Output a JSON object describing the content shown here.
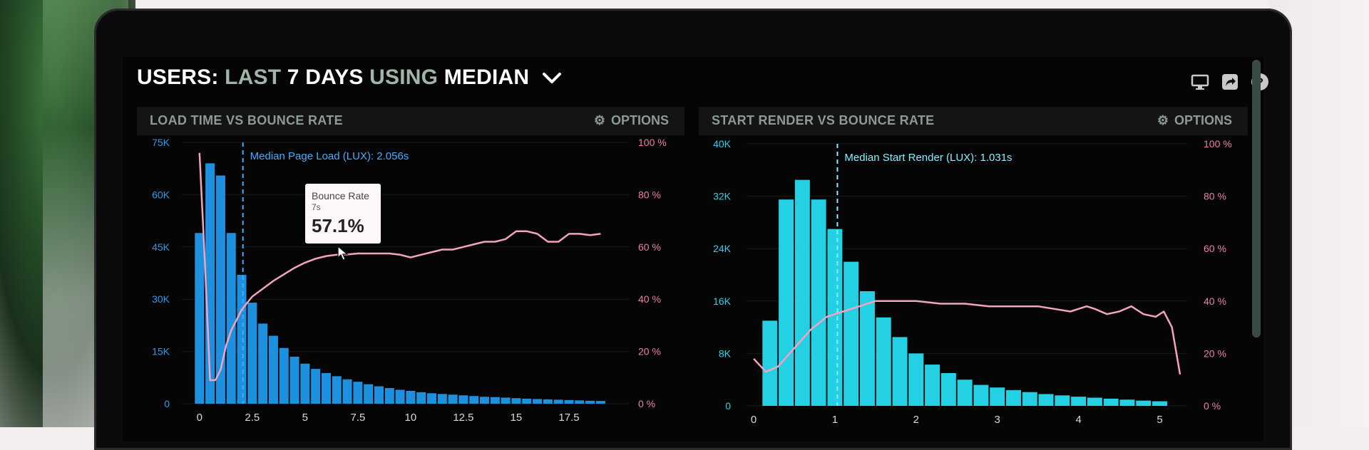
{
  "header": {
    "prefix": "USERS:",
    "last": "LAST",
    "days": "7 DAYS",
    "using": "USING",
    "metric": "MEDIAN"
  },
  "icons": [
    "monitor-icon",
    "share-icon",
    "help-icon",
    "chevron-down-icon",
    "gear-icon"
  ],
  "colors": {
    "bars_left": "#1e90e0",
    "bars_right": "#24d0e4",
    "bounce_line": "#f3a3bd",
    "median_marker_left": "#3fb0ff",
    "median_marker_right": "#7ff0ff"
  },
  "tooltip": {
    "label": "Bounce Rate",
    "sub": "7s",
    "value": "57.1%"
  },
  "chart_data": [
    {
      "type": "bar",
      "title": "LOAD TIME VS BOUNCE RATE",
      "options_label": "OPTIONS",
      "annotation": "Median Page Load (LUX): 2.056s",
      "median_x": 2.056,
      "xlim": [
        -0.5,
        20
      ],
      "ylim": [
        0,
        75000
      ],
      "y2lim": [
        0,
        100
      ],
      "y_ticks": [
        "0",
        "15K",
        "30K",
        "45K",
        "60K",
        "75K"
      ],
      "y_tick_values": [
        0,
        15000,
        30000,
        45000,
        60000,
        75000
      ],
      "y2_ticks": [
        "0 %",
        "20 %",
        "40 %",
        "60 %",
        "80 %",
        "100 %"
      ],
      "y2_tick_values": [
        0,
        20,
        40,
        60,
        80,
        100
      ],
      "x_ticks": [
        "0",
        "2.5",
        "5",
        "7.5",
        "10",
        "12.5",
        "15",
        "17.5"
      ],
      "x_tick_values": [
        0,
        2.5,
        5,
        7.5,
        10,
        12.5,
        15,
        17.5
      ],
      "bar_width": 0.5,
      "bars": {
        "x": [
          0,
          0.5,
          1,
          1.5,
          2,
          2.5,
          3,
          3.5,
          4,
          4.5,
          5,
          5.5,
          6,
          6.5,
          7,
          7.5,
          8,
          8.5,
          9,
          9.5,
          10,
          10.5,
          11,
          11.5,
          12,
          12.5,
          13,
          13.5,
          14,
          14.5,
          15,
          15.5,
          16,
          16.5,
          17,
          17.5,
          18,
          18.5,
          19
        ],
        "values": [
          49000,
          69000,
          65500,
          49000,
          37000,
          29000,
          23000,
          19500,
          16000,
          13500,
          11500,
          10000,
          8800,
          7900,
          7000,
          6300,
          5600,
          5000,
          4500,
          4000,
          3700,
          3300,
          3000,
          2800,
          2600,
          2400,
          2200,
          2000,
          1900,
          1750,
          1600,
          1450,
          1350,
          1250,
          1150,
          1050,
          950,
          850,
          800
        ]
      },
      "line": {
        "name": "Bounce Rate",
        "x": [
          0,
          0.25,
          0.5,
          0.75,
          1.0,
          1.25,
          1.5,
          2.0,
          2.5,
          3,
          3.5,
          4,
          4.5,
          5,
          5.5,
          6,
          6.5,
          7,
          7.5,
          8,
          8.5,
          9,
          9.5,
          10,
          10.5,
          11,
          11.5,
          12,
          12.5,
          13,
          13.5,
          14,
          14.5,
          15,
          15.5,
          16,
          16.5,
          17,
          17.5,
          18,
          18.5,
          19
        ],
        "values": [
          96,
          55,
          9,
          9,
          13,
          22,
          28,
          36,
          41,
          44,
          47,
          49.5,
          52,
          54,
          55.5,
          56.5,
          57,
          57.1,
          57.5,
          57.5,
          57.5,
          57.5,
          57,
          56,
          57,
          58,
          59,
          59,
          60,
          61,
          62,
          62,
          63,
          66,
          66,
          65,
          62,
          62,
          65,
          65,
          64.5,
          65
        ]
      }
    },
    {
      "type": "bar",
      "title": "START RENDER VS BOUNCE RATE",
      "options_label": "OPTIONS",
      "annotation": "Median Start Render (LUX): 1.031s",
      "median_x": 1.031,
      "xlim": [
        0,
        5.25
      ],
      "ylim": [
        0,
        40000
      ],
      "y2lim": [
        0,
        100
      ],
      "y_ticks": [
        "0",
        "8K",
        "16K",
        "24K",
        "32K",
        "40K"
      ],
      "y_tick_values": [
        0,
        8000,
        16000,
        24000,
        32000,
        40000
      ],
      "y2_ticks": [
        "0 %",
        "20 %",
        "40 %",
        "60 %",
        "80 %",
        "100 %"
      ],
      "y2_tick_values": [
        0,
        20,
        40,
        60,
        80,
        100
      ],
      "x_ticks": [
        "0",
        "1",
        "2",
        "3",
        "4",
        "5"
      ],
      "x_tick_values": [
        0,
        1,
        2,
        3,
        4,
        5
      ],
      "bar_width": 0.2,
      "bars": {
        "x": [
          0.2,
          0.4,
          0.6,
          0.8,
          1.0,
          1.2,
          1.4,
          1.6,
          1.8,
          2.0,
          2.2,
          2.4,
          2.6,
          2.8,
          3.0,
          3.2,
          3.4,
          3.6,
          3.8,
          4.0,
          4.2,
          4.4,
          4.6,
          4.8,
          5.0
        ],
        "values": [
          13000,
          31500,
          34500,
          31500,
          27000,
          22000,
          17500,
          13500,
          10500,
          8000,
          6300,
          5000,
          4000,
          3200,
          2800,
          2400,
          2100,
          1800,
          1600,
          1400,
          1250,
          1100,
          950,
          800,
          700
        ]
      },
      "line": {
        "name": "Bounce Rate",
        "x": [
          0,
          0.15,
          0.3,
          0.5,
          0.7,
          0.9,
          1.1,
          1.3,
          1.5,
          1.7,
          2.0,
          2.3,
          2.6,
          2.9,
          3.2,
          3.5,
          3.7,
          3.9,
          4.0,
          4.1,
          4.2,
          4.35,
          4.5,
          4.65,
          4.8,
          4.95,
          5.05,
          5.15,
          5.25
        ],
        "values": [
          18,
          13,
          15,
          22,
          29,
          34,
          36,
          38,
          40,
          40,
          40,
          39,
          39,
          38,
          38,
          38,
          37,
          36,
          37,
          38,
          37,
          35,
          36,
          38,
          35,
          34,
          36,
          30,
          12
        ]
      }
    }
  ]
}
